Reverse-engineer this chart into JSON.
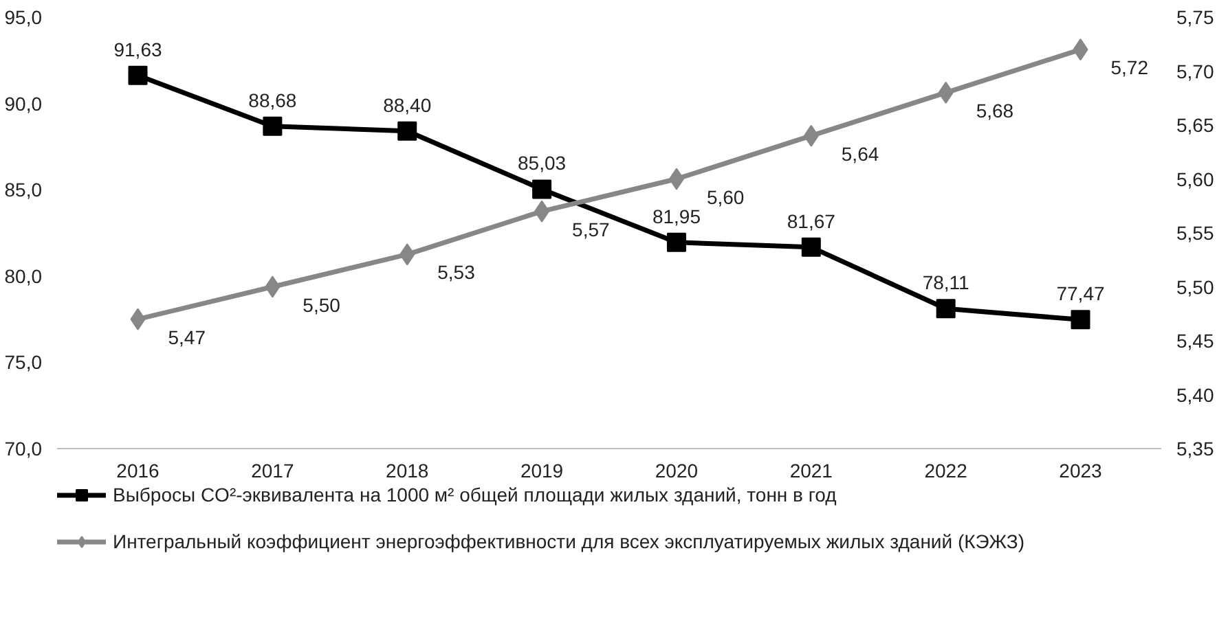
{
  "chart_data": {
    "type": "line",
    "categories": [
      "2016",
      "2017",
      "2018",
      "2019",
      "2020",
      "2021",
      "2022",
      "2023"
    ],
    "series": [
      {
        "name": "Выбросы CO²-эквивалента на 1000 м² общей площади жилых зданий, тонн в год",
        "color": "#000000",
        "marker": "square",
        "values": [
          91.63,
          88.68,
          88.4,
          85.03,
          81.95,
          81.67,
          78.11,
          77.47
        ],
        "value_labels": [
          "91,63",
          "88,68",
          "88,40",
          "85,03",
          "81,95",
          "81,67",
          "78,11",
          "77,47"
        ]
      },
      {
        "name": "Интегральный коэффициент энергоэффективности для всех эксплуатируемых жилых зданий (КЭЖЗ)",
        "color": "#878787",
        "marker": "diamond",
        "axis": "y2",
        "values": [
          5.47,
          5.5,
          5.53,
          5.57,
          5.6,
          5.64,
          5.68,
          5.72
        ],
        "value_labels": [
          "5,47",
          "5,50",
          "5,53",
          "5,57",
          "5,60",
          "5,64",
          "5,68",
          "5,72"
        ]
      }
    ],
    "ylim": [
      70,
      95
    ],
    "yticks": [
      {
        "value": 70,
        "label": "70,0"
      },
      {
        "value": 75,
        "label": "75,0"
      },
      {
        "value": 80,
        "label": "80,0"
      },
      {
        "value": 85,
        "label": "85,0"
      },
      {
        "value": 90,
        "label": "90,0"
      },
      {
        "value": 95,
        "label": "95,0"
      }
    ],
    "y2lim": [
      5.35,
      5.75
    ],
    "y2ticks": [
      {
        "value": 5.35,
        "label": "5,35"
      },
      {
        "value": 5.4,
        "label": "5,40"
      },
      {
        "value": 5.45,
        "label": "5,45"
      },
      {
        "value": 5.5,
        "label": "5,50"
      },
      {
        "value": 5.55,
        "label": "5,55"
      },
      {
        "value": 5.6,
        "label": "5,60"
      },
      {
        "value": 5.65,
        "label": "5,65"
      },
      {
        "value": 5.7,
        "label": "5,70"
      },
      {
        "value": 5.75,
        "label": "5,75"
      }
    ],
    "legend": "bottom",
    "line_style": "solid"
  }
}
